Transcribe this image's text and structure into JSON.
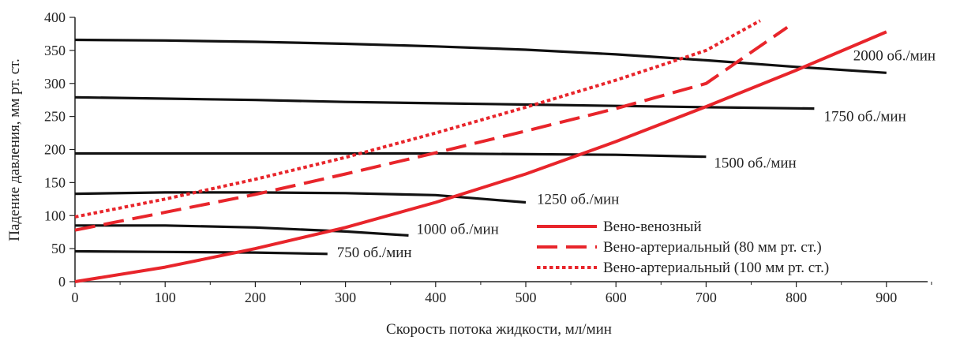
{
  "chart_data": {
    "type": "line",
    "title": "",
    "xlabel": "Скорость потока жидкости, мл/мин",
    "ylabel": "Падение давления, мм рт. ст.",
    "xlim": [
      0,
      1000
    ],
    "ylim": [
      0,
      400
    ],
    "xticks": [
      0,
      100,
      200,
      300,
      400,
      500,
      600,
      700,
      800,
      900
    ],
    "yticks": [
      0,
      50,
      100,
      150,
      200,
      250,
      300,
      350,
      400
    ],
    "grid": false,
    "legend_position": "bottom-right",
    "series": [
      {
        "name": "Вено-венозный",
        "color": "#e8252b",
        "dash": "solid",
        "x": [
          0,
          100,
          200,
          300,
          400,
          500,
          600,
          700,
          800,
          900
        ],
        "y": [
          0,
          22,
          50,
          82,
          120,
          163,
          212,
          265,
          320,
          378
        ]
      },
      {
        "name": "Вено-артериальный (80 мм рт. ст.)",
        "color": "#e8252b",
        "dash": "dashed",
        "x": [
          0,
          100,
          200,
          300,
          400,
          500,
          600,
          700,
          790
        ],
        "y": [
          78,
          105,
          132,
          163,
          195,
          228,
          262,
          300,
          385
        ]
      },
      {
        "name": "Вено-артериальный (100 мм рт. ст.)",
        "color": "#e8252b",
        "dash": "dotted",
        "x": [
          0,
          100,
          200,
          300,
          400,
          500,
          600,
          700,
          760
        ],
        "y": [
          98,
          125,
          155,
          188,
          225,
          264,
          305,
          350,
          395
        ]
      },
      {
        "color": "#111111",
        "dash": "solid",
        "label": "2000 об./мин",
        "x": [
          0,
          100,
          200,
          300,
          400,
          500,
          600,
          700,
          800,
          900
        ],
        "y": [
          366,
          365,
          363,
          360,
          356,
          351,
          344,
          335,
          325,
          316
        ]
      },
      {
        "color": "#111111",
        "dash": "solid",
        "label": "1750 об./мин",
        "x": [
          0,
          100,
          200,
          300,
          400,
          500,
          600,
          700,
          820
        ],
        "y": [
          279,
          277,
          275,
          272,
          270,
          268,
          266,
          264,
          262
        ]
      },
      {
        "color": "#111111",
        "dash": "solid",
        "label": "1500 об./мин",
        "x": [
          0,
          100,
          200,
          300,
          400,
          500,
          600,
          700
        ],
        "y": [
          194,
          194,
          194,
          194,
          194,
          193,
          192,
          189
        ]
      },
      {
        "color": "#111111",
        "dash": "solid",
        "label": "1250 об./мин",
        "x": [
          0,
          100,
          200,
          300,
          400,
          500
        ],
        "y": [
          133,
          135,
          135,
          134,
          131,
          120
        ]
      },
      {
        "color": "#111111",
        "dash": "solid",
        "label": "1000 об./мин",
        "x": [
          0,
          100,
          200,
          300,
          370
        ],
        "y": [
          85,
          85,
          82,
          76,
          70
        ]
      },
      {
        "color": "#111111",
        "dash": "solid",
        "label": "750 об./мин",
        "x": [
          0,
          100,
          200,
          280
        ],
        "y": [
          46,
          45,
          44,
          42
        ]
      }
    ]
  }
}
